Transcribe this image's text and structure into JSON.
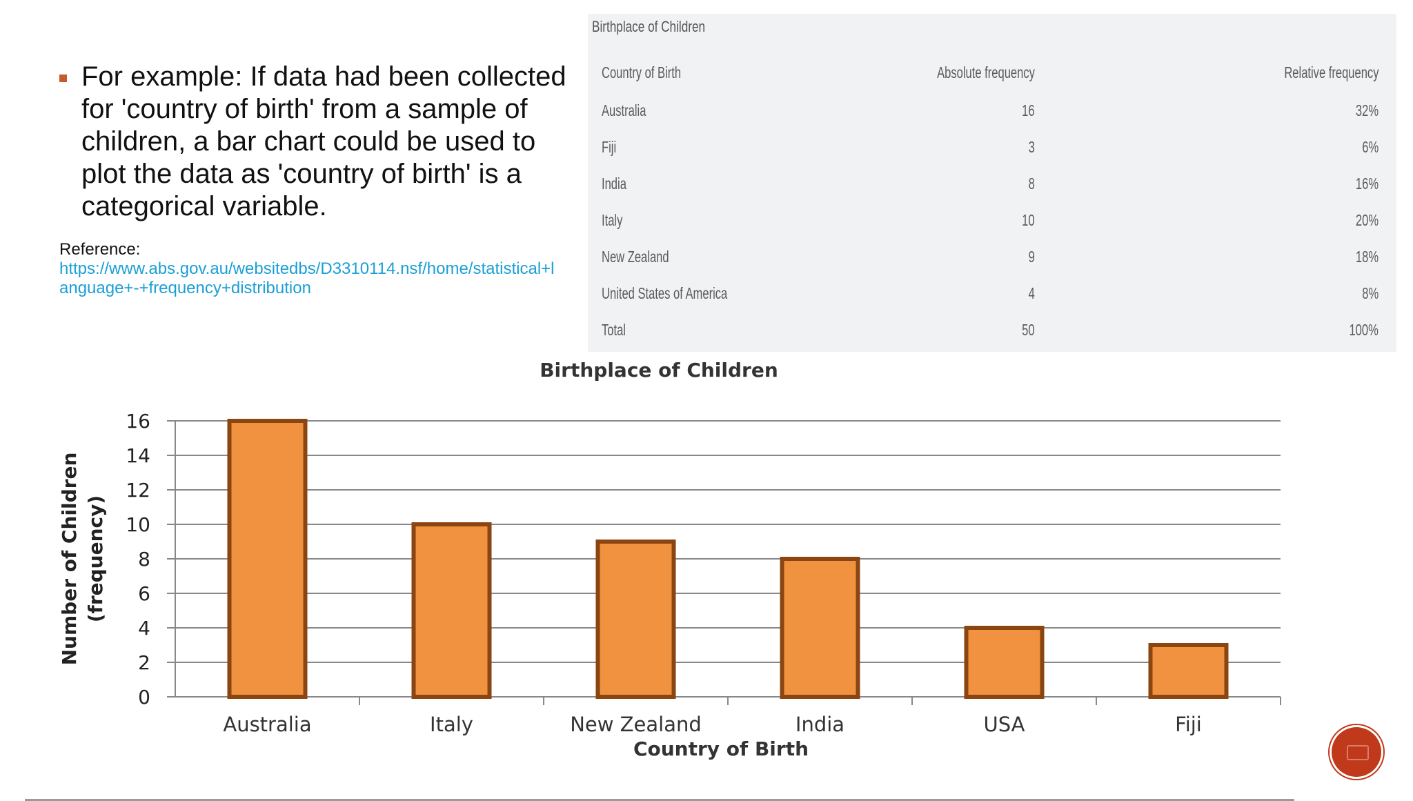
{
  "bullet": {
    "text": "For example: If data had been collected for 'country of birth' from a sample of children, a bar chart could be used to plot the data as 'country of birth' is a categorical variable."
  },
  "reference": {
    "label": "Reference:",
    "link_line1": "https://www.abs.gov.au/websitedbs/D3310114.nsf/home/statistical+l",
    "link_line2": "anguage+-+frequency+distribution"
  },
  "table": {
    "title": "Birthplace of Children",
    "headers": [
      "Country of Birth",
      "Absolute frequency",
      "Relative frequency"
    ],
    "rows": [
      [
        "Australia",
        "16",
        "32%"
      ],
      [
        "Fiji",
        "3",
        "6%"
      ],
      [
        "India",
        "8",
        "16%"
      ],
      [
        "Italy",
        "10",
        "20%"
      ],
      [
        "New Zealand",
        "9",
        "18%"
      ],
      [
        "United States of America",
        "4",
        "8%"
      ],
      [
        "Total",
        "50",
        "100%"
      ]
    ]
  },
  "chart_data": {
    "type": "bar",
    "title": "Birthplace of Children",
    "xlabel": "Country of Birth",
    "ylabel": "Number of Children (frequency)",
    "ylabel_lines": [
      "Number of Children",
      "(frequency)"
    ],
    "categories": [
      "Australia",
      "Italy",
      "New Zealand",
      "India",
      "USA",
      "Fiji"
    ],
    "values": [
      16,
      10,
      9,
      8,
      4,
      3
    ],
    "ylim": [
      0,
      16
    ],
    "yticks": [
      0,
      2,
      4,
      6,
      8,
      10,
      12,
      14,
      16
    ],
    "grid": true,
    "legend": "none",
    "colors": {
      "bar_fill": "#f0923f",
      "bar_stroke": "#8a4510",
      "grid": "#888888"
    }
  },
  "colors": {
    "accent": "#c55a2b",
    "link": "#1a9fd6",
    "nav_button": "#c0391b"
  }
}
